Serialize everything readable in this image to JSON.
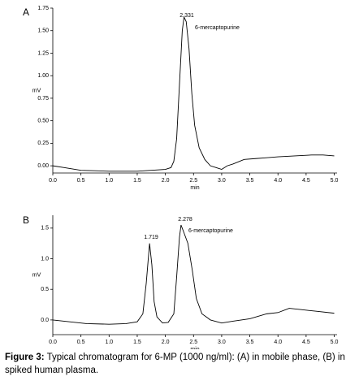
{
  "chart_data": [
    {
      "type": "line",
      "panel": "A",
      "ylabel": "mV",
      "xlabel": "min",
      "annotations": [
        "2.331",
        "6-mercaptopurine"
      ],
      "x": [
        0.0,
        0.2,
        0.5,
        1.0,
        1.5,
        2.0,
        2.1,
        2.15,
        2.2,
        2.25,
        2.3,
        2.331,
        2.37,
        2.42,
        2.47,
        2.52,
        2.6,
        2.7,
        2.8,
        2.9,
        3.0,
        3.1,
        3.2,
        3.4,
        3.6,
        3.8,
        4.0,
        4.3,
        4.6,
        4.8,
        5.0
      ],
      "series": [
        {
          "color": "#000000",
          "values": [
            0.0,
            -0.02,
            -0.05,
            -0.06,
            -0.06,
            -0.04,
            -0.02,
            0.05,
            0.3,
            0.9,
            1.5,
            1.65,
            1.6,
            1.3,
            0.8,
            0.45,
            0.2,
            0.07,
            0.0,
            -0.02,
            -0.04,
            0.0,
            0.02,
            0.07,
            0.08,
            0.09,
            0.1,
            0.11,
            0.12,
            0.12,
            0.11
          ]
        }
      ],
      "xlim": [
        0,
        5.05
      ],
      "ylim": [
        -0.08,
        1.75
      ],
      "xticks": [
        {
          "value": 0,
          "label": "0.0"
        },
        {
          "value": 0.5,
          "label": "0.5"
        },
        {
          "value": 1,
          "label": "1.0"
        },
        {
          "value": 1.5,
          "label": "1.5"
        },
        {
          "value": 2,
          "label": "2.0"
        },
        {
          "value": 2.5,
          "label": "2.5"
        },
        {
          "value": 3,
          "label": "3.0"
        },
        {
          "value": 3.5,
          "label": "3.5"
        },
        {
          "value": 4,
          "label": "4.0"
        },
        {
          "value": 4.5,
          "label": "4.5"
        },
        {
          "value": 5,
          "label": "5.0"
        }
      ],
      "yticks": [
        {
          "value": 0,
          "label": "0.00"
        },
        {
          "value": 0.25,
          "label": "0.25"
        },
        {
          "value": 0.5,
          "label": "0.50"
        },
        {
          "value": 0.75,
          "label": "0.75"
        },
        {
          "value": 1,
          "label": "1.00"
        },
        {
          "value": 1.25,
          "label": "1.25"
        },
        {
          "value": 1.5,
          "label": "1.50"
        },
        {
          "value": 1.75,
          "label": "1.75"
        }
      ]
    },
    {
      "type": "line",
      "panel": "B",
      "ylabel": "mV",
      "xlabel": "min",
      "annotations": [
        "1.719",
        "2.278",
        "6-mercaptopurine"
      ],
      "x": [
        0.0,
        0.3,
        0.6,
        1.0,
        1.3,
        1.5,
        1.6,
        1.66,
        1.719,
        1.76,
        1.8,
        1.85,
        1.95,
        2.05,
        2.15,
        2.2,
        2.25,
        2.278,
        2.32,
        2.4,
        2.48,
        2.55,
        2.65,
        2.8,
        3.0,
        3.2,
        3.5,
        3.8,
        4.0,
        4.2,
        4.4,
        4.7,
        5.0
      ],
      "series": [
        {
          "color": "#000000",
          "values": [
            0.0,
            -0.03,
            -0.06,
            -0.07,
            -0.06,
            -0.03,
            0.1,
            0.6,
            1.25,
            0.9,
            0.3,
            0.05,
            -0.05,
            -0.04,
            0.1,
            0.7,
            1.35,
            1.55,
            1.45,
            1.25,
            0.8,
            0.35,
            0.1,
            0.0,
            -0.05,
            -0.02,
            0.02,
            0.1,
            0.12,
            0.19,
            0.17,
            0.14,
            0.11
          ]
        }
      ],
      "xlim": [
        0,
        5.05
      ],
      "ylim": [
        -0.24,
        1.71
      ],
      "xticks": [
        {
          "value": 0,
          "label": "0.0"
        },
        {
          "value": 0.5,
          "label": "0.5"
        },
        {
          "value": 1,
          "label": "1.0"
        },
        {
          "value": 1.5,
          "label": "1.5"
        },
        {
          "value": 2,
          "label": "2.0"
        },
        {
          "value": 2.5,
          "label": "2.5"
        },
        {
          "value": 3,
          "label": "3.0"
        },
        {
          "value": 3.5,
          "label": "3.5"
        },
        {
          "value": 4,
          "label": "4.0"
        },
        {
          "value": 4.5,
          "label": "4.5"
        },
        {
          "value": 5,
          "label": "5.0"
        }
      ],
      "yticks": [
        {
          "value": 0,
          "label": "0.0"
        },
        {
          "value": 0.5,
          "label": "0.5"
        },
        {
          "value": 1,
          "label": "1.0"
        },
        {
          "value": 1.5,
          "label": "1.5"
        }
      ]
    }
  ],
  "caption": {
    "label": "Figure 3:",
    "text": "Typical chromatogram for 6-MP (1000 ng/ml): (A) in mobile phase, (B) in spiked human plasma."
  }
}
